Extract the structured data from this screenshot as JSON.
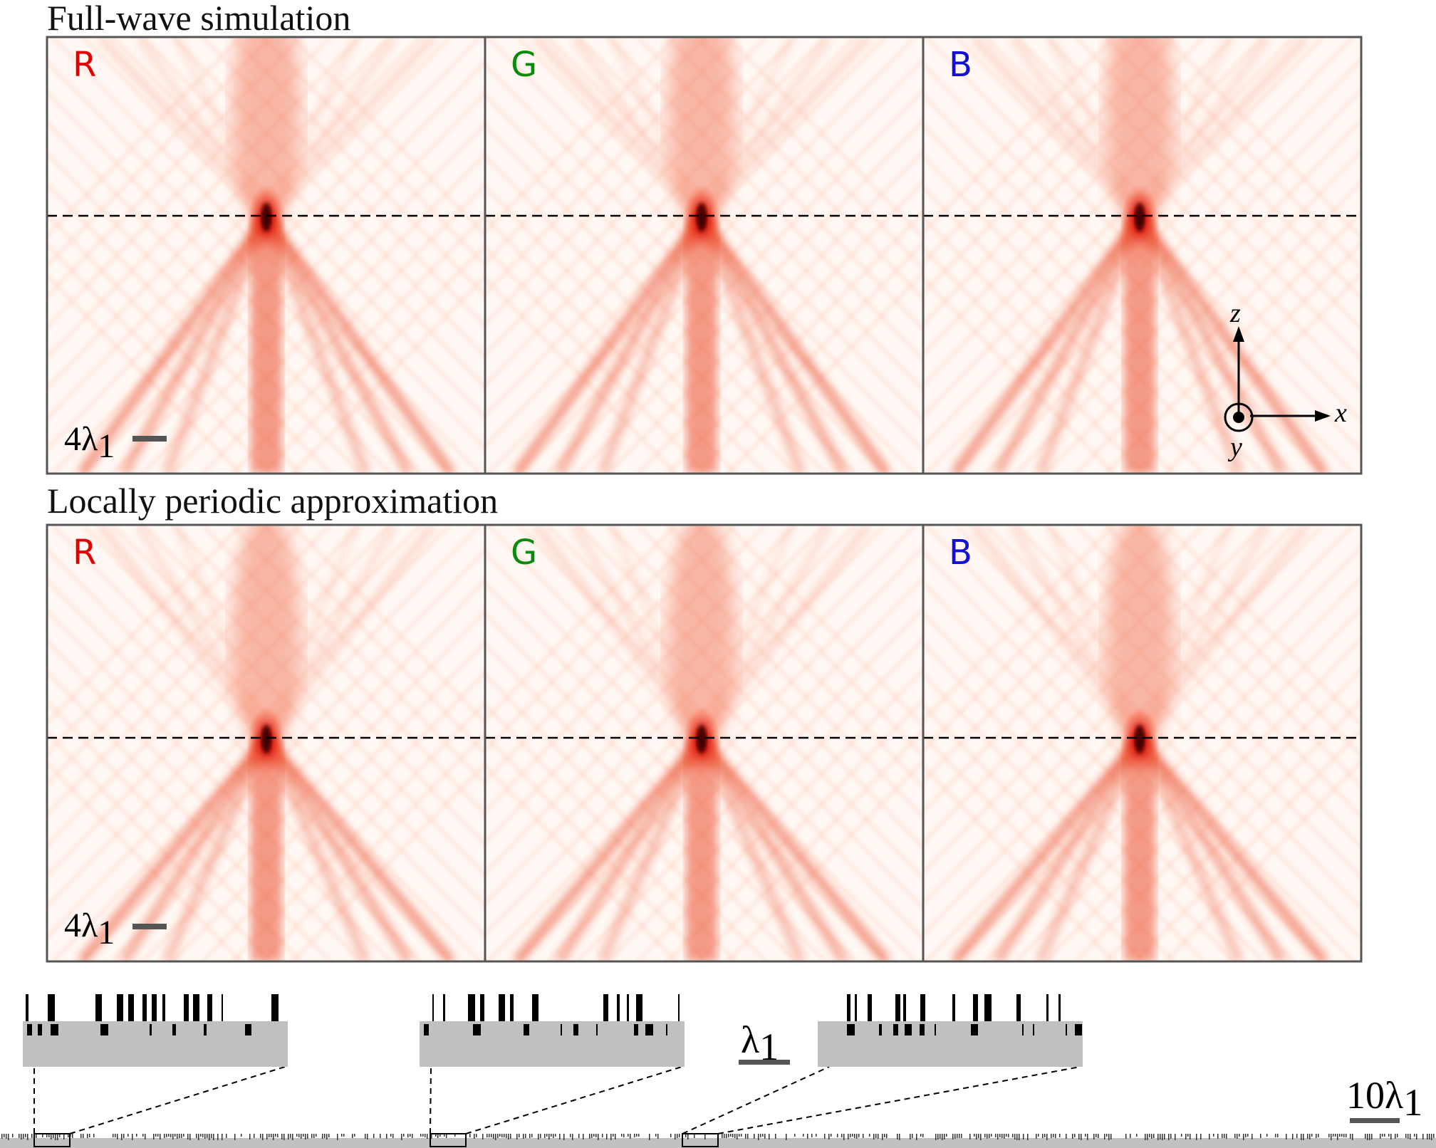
{
  "sections": {
    "top_title": "Full-wave simulation",
    "bottom_title": "Locally periodic approximation"
  },
  "panels": {
    "top": [
      {
        "label": "R",
        "color": "#e00000",
        "focus_sharpness": "medium"
      },
      {
        "label": "G",
        "color": "#0a8a0a",
        "focus_sharpness": "high"
      },
      {
        "label": "B",
        "color": "#1010d8",
        "focus_sharpness": "high"
      }
    ],
    "bottom": [
      {
        "label": "R",
        "color": "#e00000",
        "focus_sharpness": "medium"
      },
      {
        "label": "G",
        "color": "#0a8a0a",
        "focus_sharpness": "high"
      },
      {
        "label": "B",
        "color": "#1010d8",
        "focus_sharpness": "high"
      }
    ]
  },
  "scale_bars": {
    "panel_scale": {
      "prefix": "4λ",
      "subscript": "1"
    },
    "inset_scale": {
      "prefix": "λ",
      "subscript": "1"
    },
    "structure_scale": {
      "prefix": "10λ",
      "subscript": "1"
    }
  },
  "axes": {
    "z": "z",
    "x": "x",
    "y": "y"
  },
  "colors": {
    "field_map": "#e8401e",
    "field_peak": "#7a0000",
    "frame": "#555555",
    "inset_fill": "#c0c0c0"
  }
}
